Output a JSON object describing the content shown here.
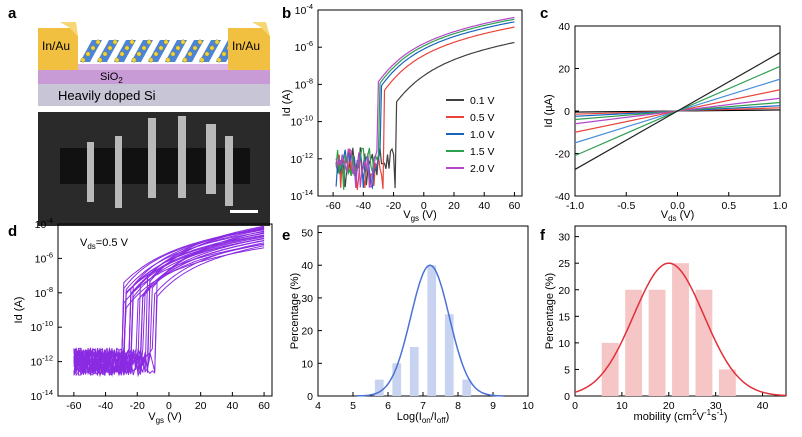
{
  "panel_labels": {
    "a": "a",
    "b": "b",
    "c": "c",
    "d": "d",
    "e": "e",
    "f": "f"
  },
  "panel_a": {
    "electrode_left": "In/Au",
    "electrode_right": "In/Au",
    "oxide_label": "SiO",
    "oxide_sub": "2",
    "substrate_label": "Heavily doped Si"
  },
  "chart_data": [
    {
      "id": "b",
      "type": "line",
      "yscale": "log",
      "xlabel": "V",
      "xlabel_sub": "gs",
      "xlabel_unit": " (V)",
      "ylabel": "Id (A)",
      "xlim": [
        -70,
        65
      ],
      "ylim": [
        1e-14,
        0.0001
      ],
      "xticks": [
        "-60",
        "-40",
        "-20",
        "0",
        "20",
        "40",
        "60"
      ],
      "yticks": [
        {
          "b": "10",
          "e": "-14"
        },
        {
          "b": "10",
          "e": "-12"
        },
        {
          "b": "10",
          "e": "-10"
        },
        {
          "b": "10",
          "e": "-8"
        },
        {
          "b": "10",
          "e": "-6"
        },
        {
          "b": "10",
          "e": "-4"
        }
      ],
      "series": [
        {
          "name": "0.1 V",
          "color": "#404040",
          "vth": -22,
          "ion": 1.8e-06,
          "gain": 0.115
        },
        {
          "name": "0.5 V",
          "color": "#e8443a",
          "vth": -30,
          "ion": 1.2e-05,
          "gain": 0.125
        },
        {
          "name": "1.0 V",
          "color": "#1565c0",
          "vth": -32,
          "ion": 2.3e-05,
          "gain": 0.125
        },
        {
          "name": "1.5 V",
          "color": "#2e9e4f",
          "vth": -33,
          "ion": 3.2e-05,
          "gain": 0.125
        },
        {
          "name": "2.0 V",
          "color": "#b447c9",
          "vth": -34,
          "ion": 4e-05,
          "gain": 0.125
        }
      ]
    },
    {
      "id": "c",
      "type": "line",
      "xlabel": "V",
      "xlabel_sub": "ds",
      "xlabel_unit": " (V)",
      "ylabel": "Id (µA)",
      "xlim": [
        -1.0,
        1.0
      ],
      "ylim": [
        -40,
        40
      ],
      "xticks": [
        "-1.0",
        "-0.5",
        "0.0",
        "0.5",
        "1.0"
      ],
      "yticks": [
        "-40",
        "-20",
        "0",
        "20",
        "40"
      ],
      "series": [
        {
          "color": "#000000",
          "slope": 0.5
        },
        {
          "color": "#e8443a",
          "slope": 1.5
        },
        {
          "color": "#1565c0",
          "slope": 2.5
        },
        {
          "color": "#2e9e4f",
          "slope": 4
        },
        {
          "color": "#b447c9",
          "slope": 6
        },
        {
          "color": "#e8443a",
          "slope": 10
        },
        {
          "color": "#4a90d9",
          "slope": 15
        },
        {
          "color": "#2e9e4f",
          "slope": 21
        },
        {
          "color": "#222222",
          "slope": 27.5
        }
      ]
    },
    {
      "id": "d",
      "type": "line",
      "yscale": "log",
      "annotation": "V",
      "annotation_sub": "ds",
      "annotation_rest": "=0.5 V",
      "xlabel": "V",
      "xlabel_sub": "gs",
      "xlabel_unit": " (V)",
      "ylabel": "Id (A)",
      "xlim": [
        -70,
        65
      ],
      "ylim": [
        1e-14,
        0.0001
      ],
      "xticks": [
        "-60",
        "-40",
        "-20",
        "0",
        "20",
        "40",
        "60"
      ],
      "yticks": [
        {
          "b": "10",
          "e": "-14"
        },
        {
          "b": "10",
          "e": "-12"
        },
        {
          "b": "10",
          "e": "-10"
        },
        {
          "b": "10",
          "e": "-8"
        },
        {
          "b": "10",
          "e": "-6"
        },
        {
          "b": "10",
          "e": "-4"
        }
      ],
      "color": "#8a2be2",
      "device_count": 24
    },
    {
      "id": "e",
      "type": "bar",
      "xlabel": "Log(I",
      "xlabel_sub1": "on",
      "xlabel_mid": "/I",
      "xlabel_sub2": "off",
      "xlabel_end": ")",
      "ylabel": "Percentage (%)",
      "xlim": [
        4,
        10
      ],
      "ylim": [
        0,
        52
      ],
      "xticks": [
        "4",
        "5",
        "6",
        "7",
        "8",
        "9",
        "10"
      ],
      "yticks": [
        "0",
        "10",
        "20",
        "30",
        "40",
        "50"
      ],
      "bar_width": 0.25,
      "bars": [
        {
          "x": 5.75,
          "v": 5
        },
        {
          "x": 6.25,
          "v": 10
        },
        {
          "x": 6.75,
          "v": 15
        },
        {
          "x": 7.25,
          "v": 40
        },
        {
          "x": 7.75,
          "v": 25
        },
        {
          "x": 8.25,
          "v": 5
        }
      ],
      "fit": {
        "mu": 7.2,
        "sigma": 0.55,
        "peak": 40
      },
      "bar_color": "#c7d3f0",
      "fit_color": "#4a72d6"
    },
    {
      "id": "f",
      "type": "bar",
      "xlabel": "mobility (cm",
      "xlabel_sup1": "2",
      "xlabel_mid": "V",
      "xlabel_sup2": "-1",
      "xlabel_mid2": "s",
      "xlabel_sup3": "-1",
      "xlabel_end": ")",
      "ylabel": "Percentage (%)",
      "xlim": [
        0,
        45
      ],
      "ylim": [
        0,
        32
      ],
      "xticks": [
        "0",
        "10",
        "20",
        "30",
        "40"
      ],
      "yticks": [
        "0",
        "5",
        "10",
        "15",
        "20",
        "25",
        "30"
      ],
      "bar_width": 3.6,
      "bars": [
        {
          "x": 7.5,
          "v": 10
        },
        {
          "x": 12.5,
          "v": 20
        },
        {
          "x": 17.5,
          "v": 20
        },
        {
          "x": 22.5,
          "v": 25
        },
        {
          "x": 27.5,
          "v": 20
        },
        {
          "x": 32.5,
          "v": 5
        }
      ],
      "fit": {
        "mu": 20,
        "sigma": 7.5,
        "peak": 25
      },
      "bar_color": "#f6c6c6",
      "fit_color": "#e0303a"
    }
  ]
}
